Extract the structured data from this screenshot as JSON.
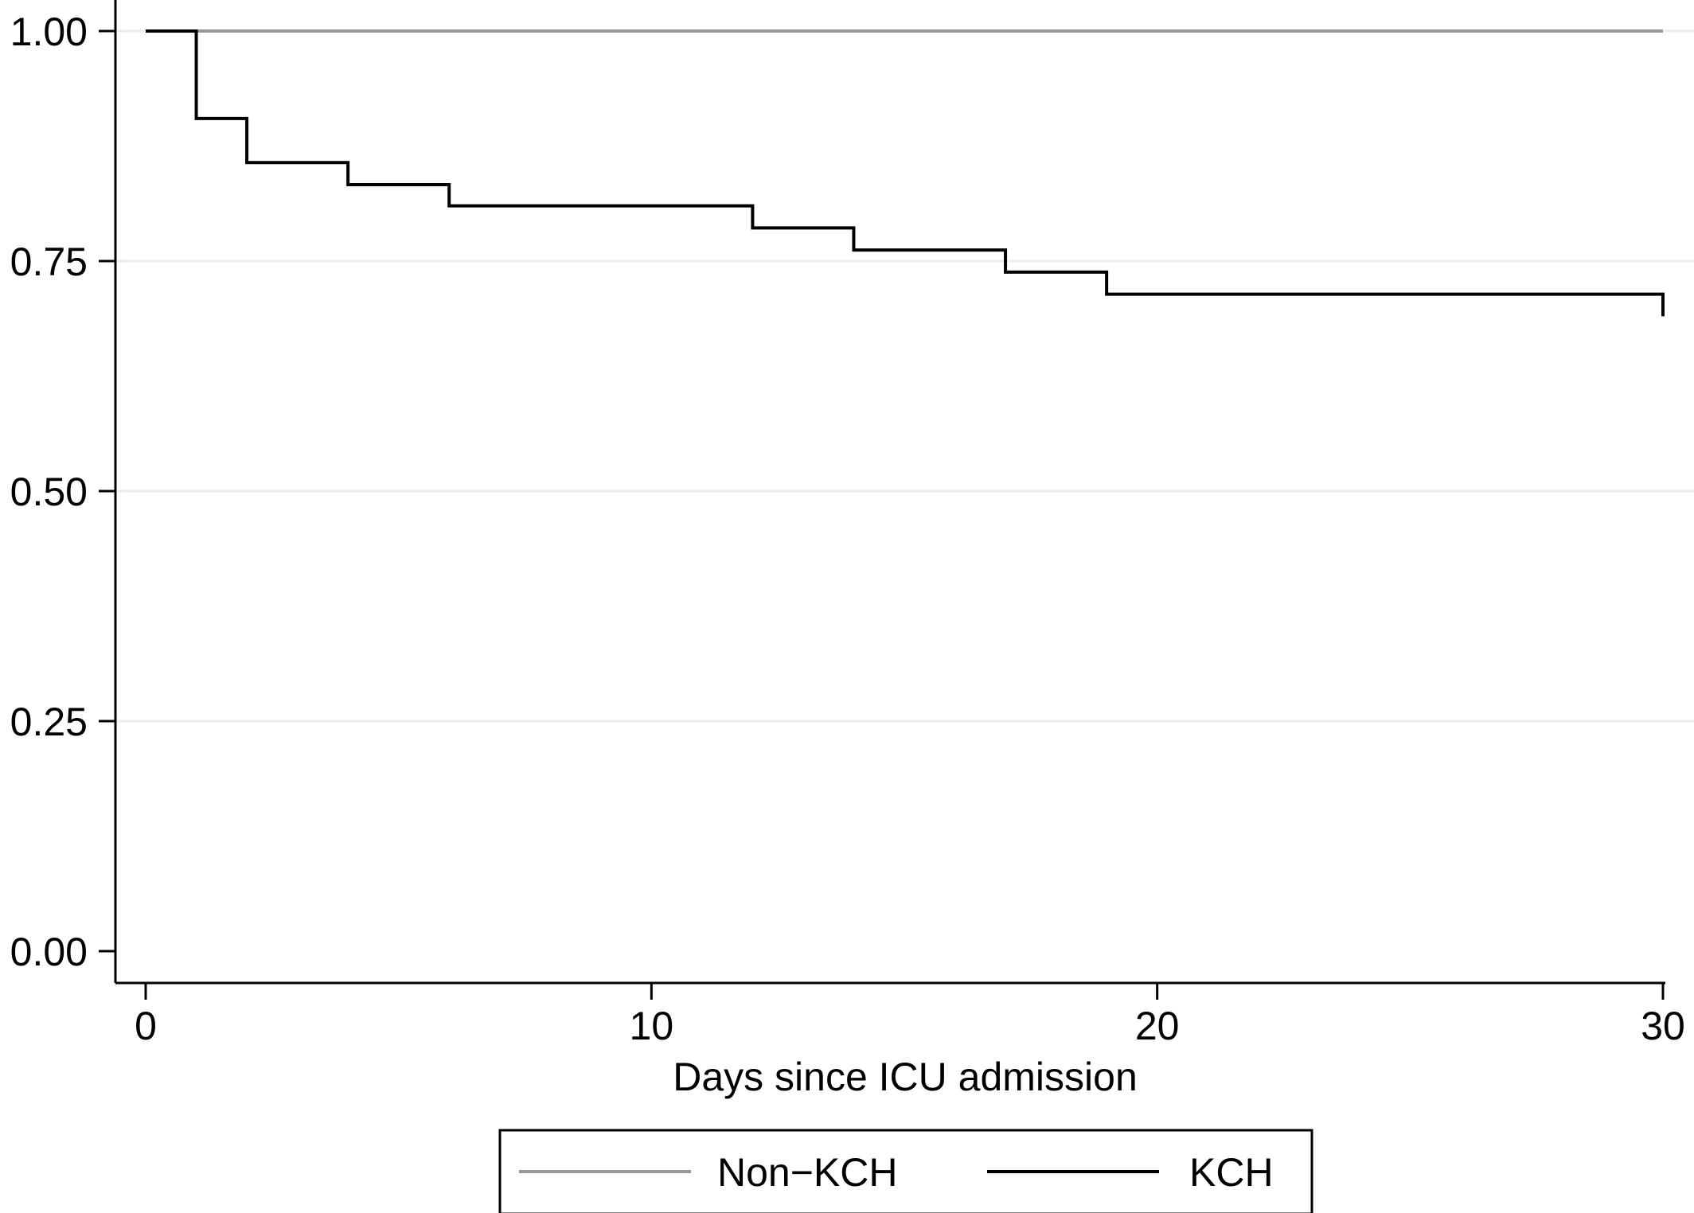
{
  "chart_data": {
    "type": "line",
    "step": true,
    "title": "",
    "xlabel": "Days since ICU admission",
    "ylabel": "",
    "xlim": [
      0,
      30
    ],
    "ylim": [
      0,
      1
    ],
    "xticks": [
      0,
      10,
      20,
      30
    ],
    "xtick_labels": [
      "0",
      "10",
      "20",
      "30"
    ],
    "yticks": [
      0,
      0.25,
      0.5,
      0.75,
      1
    ],
    "ytick_labels": [
      "0.00",
      "0.25",
      "0.50",
      "0.75",
      "1.00"
    ],
    "grid": "horizontal",
    "legend_position": "bottom",
    "series": [
      {
        "name": "Non-KCH",
        "color": "#999999",
        "x": [
          0,
          30
        ],
        "y": [
          1.0,
          1.0
        ]
      },
      {
        "name": "KCH",
        "color": "#000000",
        "x": [
          0,
          1,
          2,
          4,
          6,
          12,
          14,
          17,
          19,
          30
        ],
        "y": [
          1.0,
          0.905,
          0.857,
          0.833,
          0.81,
          0.786,
          0.762,
          0.738,
          0.714,
          0.69
        ]
      }
    ],
    "legend": {
      "items": [
        "Non−KCH",
        "KCH"
      ]
    }
  }
}
